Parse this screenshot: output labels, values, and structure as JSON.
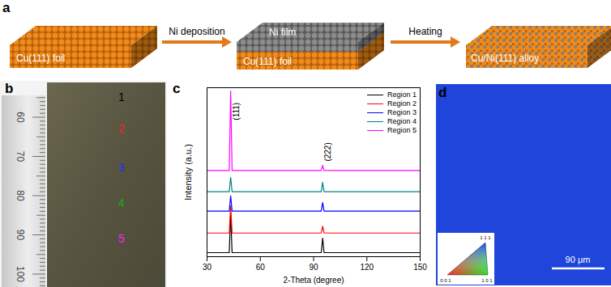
{
  "figure": {
    "panels": {
      "a": {
        "label": "a",
        "steps": [
          {
            "block": "Cu(111) foil"
          },
          {
            "block": "Cu(111) foil",
            "layer": "Ni film"
          },
          {
            "block": "Cu/Ni(111) alloy"
          }
        ],
        "arrows": [
          "Ni deposition",
          "Heating"
        ]
      },
      "b": {
        "label": "b",
        "ruler_labels": [
          "60",
          "70",
          "80",
          "90",
          "100"
        ],
        "regions": [
          {
            "text": "1",
            "color": "#000000"
          },
          {
            "text": "2",
            "color": "#ff2020"
          },
          {
            "text": "3",
            "color": "#2030ff"
          },
          {
            "text": "4",
            "color": "#10b010"
          },
          {
            "text": "5",
            "color": "#ff20ff"
          }
        ]
      },
      "c": {
        "label": "c"
      },
      "d": {
        "label": "d",
        "scale_bar": "90 μm",
        "legend_corners": [
          "1 1 1",
          "0 0 1",
          "1 0 1"
        ]
      }
    }
  },
  "chart_data": {
    "type": "line",
    "xlabel": "2-Theta (degree)",
    "ylabel": "Intensity (a.u.)",
    "x": [
      30,
      42.5,
      43.3,
      44.1,
      94.3,
      95.1,
      95.9,
      150
    ],
    "series": [
      {
        "name": "Region 1",
        "color": "#000000",
        "values": [
          2.4,
          2.4,
          25,
          2.4,
          2.4,
          11,
          2.4,
          2.4
        ]
      },
      {
        "name": "Region 2",
        "color": "#ff0000",
        "values": [
          14,
          14,
          30,
          14,
          14,
          18,
          14,
          14
        ]
      },
      {
        "name": "Region 3",
        "color": "#0000ff",
        "values": [
          27,
          27,
          36,
          27,
          27,
          32,
          27,
          27
        ]
      },
      {
        "name": "Region 4",
        "color": "#008080",
        "values": [
          38.5,
          38.5,
          47,
          38.5,
          38.5,
          44,
          38.5,
          38.5
        ]
      },
      {
        "name": "Region 5",
        "color": "#ff00ff",
        "values": [
          51,
          51,
          98,
          51,
          51,
          54,
          51,
          51
        ]
      }
    ],
    "annotations": [
      {
        "text": "(111)",
        "x": 43.3,
        "y": 86
      },
      {
        "text": "(222)",
        "x": 95.1,
        "y": 62
      }
    ],
    "xlim": [
      30,
      150
    ],
    "xticks": [
      30,
      60,
      90,
      120,
      150
    ],
    "ylim": [
      0,
      100
    ],
    "yticks": [],
    "tick_labels": "x",
    "grid": false,
    "legend": "top-right"
  }
}
